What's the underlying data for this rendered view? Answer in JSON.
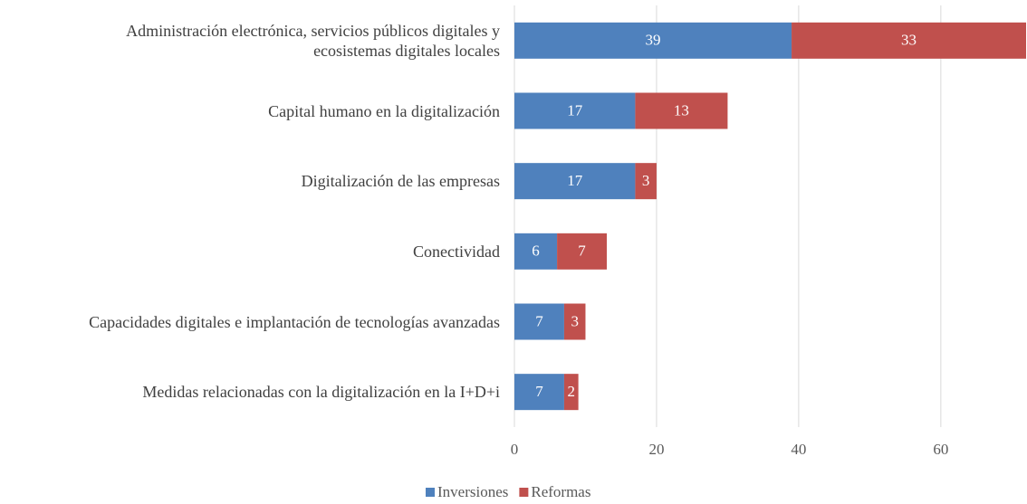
{
  "chart_data": {
    "type": "stacked-barh",
    "categories": [
      "Administración electrónica, servicios públicos digitales y\necosistemas digitales locales",
      "Capital humano en la digitalización",
      "Digitalización de las empresas",
      "Conectividad",
      "Capacidades digitales e implantación de tecnologías avanzadas",
      "Medidas relacionadas con la digitalización en la I+D+i"
    ],
    "series": [
      {
        "name": "Inversiones",
        "color": "#4f81bd",
        "values": [
          39,
          17,
          17,
          6,
          7,
          7
        ]
      },
      {
        "name": "Reformas",
        "color": "#c0504d",
        "values": [
          33,
          13,
          3,
          7,
          3,
          2
        ]
      }
    ],
    "xlim": [
      0,
      72
    ],
    "xticks": [
      0,
      20,
      40,
      60
    ],
    "grid": true,
    "legend": "bottom"
  }
}
